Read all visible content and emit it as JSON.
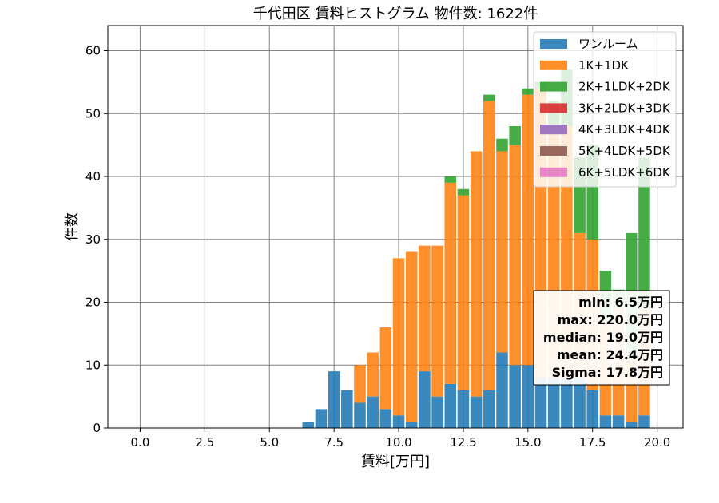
{
  "chart_data": {
    "type": "bar",
    "stacked": true,
    "title": "千代田区 賃料ヒストグラム  物件数: 1622件",
    "xlabel": "賃料[万円]",
    "ylabel": "件数",
    "xlim": [
      -1.25,
      21.0
    ],
    "ylim": [
      0,
      64
    ],
    "xticks": [
      "0.0",
      "2.5",
      "5.0",
      "7.5",
      "10.0",
      "12.5",
      "15.0",
      "17.5",
      "20.0"
    ],
    "xtick_values": [
      0,
      2.5,
      5,
      7.5,
      10,
      12.5,
      15,
      17.5,
      20
    ],
    "yticks": [
      "0",
      "10",
      "20",
      "30",
      "40",
      "50",
      "60"
    ],
    "ytick_values": [
      0,
      10,
      20,
      30,
      40,
      50,
      60
    ],
    "grid": true,
    "legend_position": "top-right",
    "bin_width": 0.5,
    "x": [
      6.5,
      7.0,
      7.5,
      8.0,
      8.5,
      9.0,
      9.5,
      10.0,
      10.5,
      11.0,
      11.5,
      12.0,
      12.5,
      13.0,
      13.5,
      14.0,
      14.5,
      15.0,
      15.5,
      16.0,
      16.5,
      17.0,
      17.5,
      18.0,
      18.5,
      19.0,
      19.5
    ],
    "series": [
      {
        "name": "ワンルーム",
        "color": "#1f77b4",
        "values": [
          1,
          3,
          9,
          6,
          4,
          5,
          3,
          2,
          1,
          9,
          5,
          7,
          6,
          5,
          6,
          12,
          10,
          10,
          8,
          8,
          8,
          8,
          6,
          2,
          2,
          1,
          2
        ]
      },
      {
        "name": "1K+1DK",
        "color": "#ff7f0e",
        "values": [
          0,
          0,
          0,
          0,
          6,
          7,
          13,
          25,
          27,
          20,
          24,
          32,
          31,
          39,
          46,
          32,
          35,
          43,
          46,
          39,
          40,
          23,
          24,
          15,
          17,
          10,
          17
        ]
      },
      {
        "name": "2K+1LDK+2DK",
        "color": "#2ca02c",
        "values": [
          0,
          0,
          0,
          0,
          0,
          0,
          0,
          0,
          0,
          0,
          0,
          1,
          1,
          0,
          1,
          2,
          3,
          1,
          1,
          5,
          9,
          12,
          15,
          8,
          3,
          20,
          24
        ]
      },
      {
        "name": "3K+2LDK+3DK",
        "color": "#d62728",
        "values": [
          0,
          0,
          0,
          0,
          0,
          0,
          0,
          0,
          0,
          0,
          0,
          0,
          0,
          0,
          0,
          0,
          0,
          0,
          0,
          0,
          0,
          0,
          0,
          0,
          0,
          0,
          0
        ]
      },
      {
        "name": "4K+3LDK+4DK",
        "color": "#9467bd",
        "values": [
          0,
          0,
          0,
          0,
          0,
          0,
          0,
          0,
          0,
          0,
          0,
          0,
          0,
          0,
          0,
          0,
          0,
          0,
          0,
          0,
          0,
          0,
          0,
          0,
          0,
          0,
          0
        ]
      },
      {
        "name": "5K+4LDK+5DK",
        "color": "#8c564b",
        "values": [
          0,
          0,
          0,
          0,
          0,
          0,
          0,
          0,
          0,
          0,
          0,
          0,
          0,
          0,
          0,
          0,
          0,
          0,
          0,
          0,
          0,
          0,
          0,
          0,
          0,
          0,
          0
        ]
      },
      {
        "name": "6K+5LDK+6DK",
        "color": "#e377c2",
        "values": [
          0,
          0,
          0,
          0,
          0,
          0,
          0,
          0,
          0,
          0,
          0,
          0,
          0,
          0,
          0,
          0,
          0,
          0,
          0,
          0,
          0,
          0,
          0,
          0,
          0,
          0,
          0
        ]
      }
    ],
    "stats_box": {
      "min": "min: 6.5万円",
      "max": "max: 220.0万円",
      "median": "median: 19.0万円",
      "mean": "mean: 24.4万円",
      "sigma": "Sigma: 17.8万円"
    }
  }
}
